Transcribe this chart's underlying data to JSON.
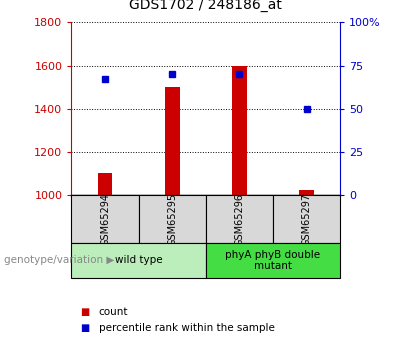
{
  "title": "GDS1702 / 248186_at",
  "samples": [
    "GSM65294",
    "GSM65295",
    "GSM65296",
    "GSM65297"
  ],
  "count_values": [
    1100,
    1500,
    1600,
    1025
  ],
  "count_baseline": 1000,
  "percentile_values": [
    67,
    70,
    70,
    50
  ],
  "ylim_left": [
    1000,
    1800
  ],
  "ylim_right": [
    0,
    100
  ],
  "yticks_left": [
    1000,
    1200,
    1400,
    1600,
    1800
  ],
  "yticks_right": [
    0,
    25,
    50,
    75,
    100
  ],
  "bar_color": "#cc0000",
  "dot_color": "#0000cc",
  "group_labels": [
    "wild type",
    "phyA phyB double\nmutant"
  ],
  "group_colors": [
    "#bbeebb",
    "#44dd44"
  ],
  "group_ranges": [
    [
      0,
      2
    ],
    [
      2,
      4
    ]
  ],
  "legend_count_label": "count",
  "legend_pct_label": "percentile rank within the sample",
  "left_label": "genotype/variation",
  "title_fontsize": 10,
  "tick_fontsize": 8,
  "bar_width": 0.22
}
